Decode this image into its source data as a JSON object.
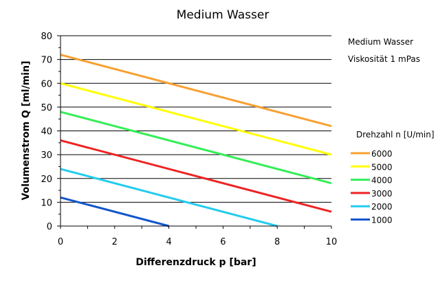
{
  "chart_data": {
    "type": "line",
    "title": "Medium Wasser",
    "xlabel": "Differenzdruck p [bar]",
    "ylabel": "Volumenstrom Q [ml/min]",
    "xlim": [
      0,
      10
    ],
    "ylim": [
      0,
      80
    ],
    "x_ticks": [
      "0",
      "2",
      "4",
      "6",
      "8",
      "10"
    ],
    "y_ticks": [
      "0",
      "10",
      "20",
      "30",
      "40",
      "50",
      "60",
      "70",
      "80"
    ],
    "grid": "horizontal",
    "notes": [
      "Medium Wasser",
      "Viskosität 1 mPas"
    ],
    "legend_title": "Drehzahl n [U/min]",
    "legend_position": "right",
    "series": [
      {
        "name": "6000",
        "color": "#f7a030",
        "x": [
          0,
          10
        ],
        "y": [
          72,
          42
        ]
      },
      {
        "name": "5000",
        "color": "#ffff00",
        "x": [
          0,
          10
        ],
        "y": [
          60,
          30
        ]
      },
      {
        "name": "4000",
        "color": "#33ee55",
        "x": [
          0,
          10
        ],
        "y": [
          48,
          18
        ]
      },
      {
        "name": "3000",
        "color": "#ee2222",
        "x": [
          0,
          10
        ],
        "y": [
          36,
          6
        ]
      },
      {
        "name": "2000",
        "color": "#22ccee",
        "x": [
          0,
          8
        ],
        "y": [
          24,
          0
        ]
      },
      {
        "name": "1000",
        "color": "#1155cc",
        "x": [
          0,
          4
        ],
        "y": [
          12,
          0
        ]
      }
    ]
  }
}
